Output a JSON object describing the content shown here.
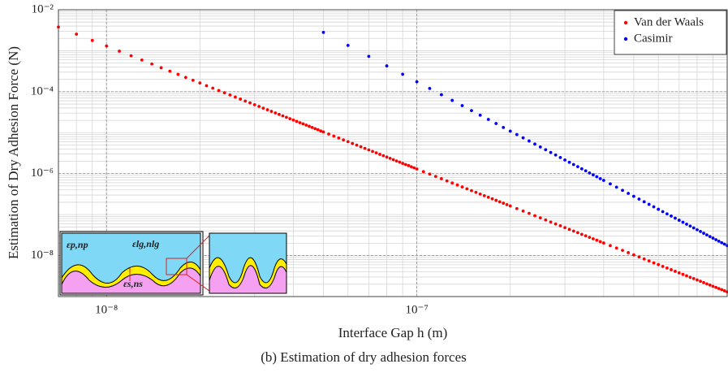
{
  "chart_data": {
    "type": "scatter",
    "xlabel": "Interface Gap h (m)",
    "ylabel": "Estimation of Dry Adhesion Force (N)",
    "caption": "(b) Estimation of dry adhesion forces",
    "log_x": true,
    "log_y": true,
    "grid": true,
    "legend": "northeast",
    "xlim": [
      7e-09,
      1e-06
    ],
    "ylim": [
      1e-09,
      0.01
    ],
    "xticks": [
      {
        "value": 1e-08,
        "label": "10⁻⁸"
      },
      {
        "value": 1e-07,
        "label": "10⁻⁷"
      }
    ],
    "yticks": [
      {
        "value": 1e-08,
        "label": "10⁻⁸"
      },
      {
        "value": 1e-06,
        "label": "10⁻⁶"
      },
      {
        "value": 0.0001,
        "label": "10⁻⁴"
      },
      {
        "value": 0.01,
        "label": "10⁻²"
      }
    ],
    "inset_labels": [
      "εp,np",
      "εlg,nlg",
      "εs,ns"
    ],
    "series": [
      {
        "name": "Van der Waals",
        "color": "#ff0000",
        "x": [
          7e-09,
          8e-09,
          9e-09,
          1e-08,
          1.1e-08,
          1.2e-08,
          1.3e-08,
          1.4e-08,
          1.5e-08,
          1.6e-08,
          1.7e-08,
          1.8e-08,
          1.9e-08,
          2e-08,
          2.1e-08,
          2.2e-08,
          2.3e-08,
          2.4e-08,
          2.5e-08,
          2.6e-08,
          2.7e-08,
          2.8e-08,
          2.9e-08,
          3e-08,
          3.1e-08,
          3.2e-08,
          3.3e-08,
          3.4e-08,
          3.5e-08,
          3.6e-08,
          3.7e-08,
          3.8e-08,
          3.9e-08,
          4e-08,
          4.1e-08,
          4.2e-08,
          4.3e-08,
          4.4e-08,
          4.5e-08,
          4.6e-08,
          4.7e-08,
          4.8e-08,
          4.9e-08,
          5e-08,
          5.2e-08,
          5.4e-08,
          5.6e-08,
          5.8e-08,
          6e-08,
          6.2e-08,
          6.4e-08,
          6.6e-08,
          6.8e-08,
          7e-08,
          7.2e-08,
          7.4e-08,
          7.6e-08,
          7.8e-08,
          8e-08,
          8.2e-08,
          8.4e-08,
          8.6e-08,
          8.8e-08,
          9e-08,
          9.2e-08,
          9.4e-08,
          9.6e-08,
          9.8e-08,
          1e-07,
          1.05e-07,
          1.1e-07,
          1.15e-07,
          1.2e-07,
          1.25e-07,
          1.3e-07,
          1.35e-07,
          1.4e-07,
          1.45e-07,
          1.5e-07,
          1.55e-07,
          1.6e-07,
          1.65e-07,
          1.7e-07,
          1.75e-07,
          1.8e-07,
          1.85e-07,
          1.9e-07,
          1.95e-07,
          2e-07,
          2.1e-07,
          2.2e-07,
          2.3e-07,
          2.4e-07,
          2.5e-07,
          2.6e-07,
          2.7e-07,
          2.8e-07,
          2.9e-07,
          3e-07,
          3.1e-07,
          3.2e-07,
          3.3e-07,
          3.4e-07,
          3.5e-07,
          3.6e-07,
          3.7e-07,
          3.8e-07,
          3.9e-07,
          4e-07,
          4.2e-07,
          4.4e-07,
          4.6e-07,
          4.8e-07,
          5e-07,
          5.2e-07,
          5.4e-07,
          5.6e-07,
          5.8e-07,
          6e-07,
          6.2e-07,
          6.4e-07,
          6.6e-07,
          6.8e-07,
          7e-07,
          7.2e-07,
          7.4e-07,
          7.6e-07,
          7.8e-07,
          8e-07,
          8.2e-07,
          8.4e-07,
          8.6e-07,
          8.8e-07,
          9e-07,
          9.2e-07,
          9.4e-07,
          9.6e-07,
          9.8e-07,
          1e-06
        ],
        "values": [
          0.00379,
          0.00254,
          0.00178,
          0.0013,
          0.000977,
          0.000752,
          0.000592,
          0.000474,
          0.000385,
          0.000317,
          0.000265,
          0.000223,
          0.00019,
          0.000163,
          0.00014,
          0.000122,
          0.000107,
          9.4e-05,
          8.32e-05,
          7.4e-05,
          6.6e-05,
          5.92e-05,
          5.33e-05,
          4.81e-05,
          4.36e-05,
          3.97e-05,
          3.62e-05,
          3.31e-05,
          3.03e-05,
          2.79e-05,
          2.57e-05,
          2.37e-05,
          2.19e-05,
          2.03e-05,
          1.89e-05,
          1.75e-05,
          1.64e-05,
          1.53e-05,
          1.43e-05,
          1.34e-05,
          1.25e-05,
          1.18e-05,
          1.1e-05,
          1.04e-05,
          9.25e-06,
          8.26e-06,
          7.4e-06,
          6.66e-06,
          6.02e-06,
          5.45e-06,
          4.96e-06,
          4.52e-06,
          4.13e-06,
          3.79e-06,
          3.48e-06,
          3.21e-06,
          2.96e-06,
          2.74e-06,
          2.54e-06,
          2.36e-06,
          2.19e-06,
          2.04e-06,
          1.91e-06,
          1.78e-06,
          1.67e-06,
          1.57e-06,
          1.47e-06,
          1.38e-06,
          1.3e-06,
          1.12e-06,
          9.77e-07,
          8.55e-07,
          7.52e-07,
          6.66e-07,
          5.92e-07,
          5.28e-07,
          4.74e-07,
          4.26e-07,
          3.85e-07,
          3.49e-07,
          3.17e-07,
          2.89e-07,
          2.65e-07,
          2.43e-07,
          2.23e-07,
          2.05e-07,
          1.9e-07,
          1.75e-07,
          1.63e-07,
          1.4e-07,
          1.22e-07,
          1.07e-07,
          9.4e-08,
          8.32e-08,
          7.4e-08,
          6.6e-08,
          5.92e-08,
          5.33e-08,
          4.81e-08,
          4.36e-08,
          3.97e-08,
          3.62e-08,
          3.31e-08,
          3.03e-08,
          2.79e-08,
          2.57e-08,
          2.37e-08,
          2.19e-08,
          2.03e-08,
          1.75e-08,
          1.53e-08,
          1.34e-08,
          1.18e-08,
          1.04e-08,
          9.25e-09,
          8.26e-09,
          7.4e-09,
          6.66e-09,
          6.02e-09,
          5.45e-09,
          4.96e-09,
          4.52e-09,
          4.13e-09,
          3.79e-09,
          3.48e-09,
          3.21e-09,
          2.96e-09,
          2.74e-09,
          2.54e-09,
          2.36e-09,
          2.19e-09,
          2.04e-09,
          1.91e-09,
          1.78e-09,
          1.67e-09,
          1.57e-09,
          1.47e-09,
          1.38e-09,
          1.3e-09
        ]
      },
      {
        "name": "Casimir",
        "color": "#0000ff",
        "x": [
          5e-08,
          6e-08,
          7e-08,
          8e-08,
          9e-08,
          1e-07,
          1.1e-07,
          1.2e-07,
          1.3e-07,
          1.4e-07,
          1.5e-07,
          1.6e-07,
          1.7e-07,
          1.8e-07,
          1.9e-07,
          2e-07,
          2.1e-07,
          2.2e-07,
          2.3e-07,
          2.4e-07,
          2.5e-07,
          2.6e-07,
          2.7e-07,
          2.8e-07,
          2.9e-07,
          3e-07,
          3.1e-07,
          3.2e-07,
          3.3e-07,
          3.4e-07,
          3.5e-07,
          3.6e-07,
          3.7e-07,
          3.8e-07,
          3.9e-07,
          4e-07,
          4.2e-07,
          4.4e-07,
          4.6e-07,
          4.8e-07,
          5e-07,
          5.2e-07,
          5.4e-07,
          5.6e-07,
          5.8e-07,
          6e-07,
          6.2e-07,
          6.4e-07,
          6.6e-07,
          6.8e-07,
          7e-07,
          7.2e-07,
          7.4e-07,
          7.6e-07,
          7.8e-07,
          8e-07,
          8.2e-07,
          8.4e-07,
          8.6e-07,
          8.8e-07,
          9e-07,
          9.2e-07,
          9.4e-07,
          9.6e-07,
          9.8e-07,
          1e-06
        ],
        "values": [
          0.0028,
          0.00135,
          0.000729,
          0.000427,
          0.000267,
          0.000175,
          0.00012,
          8.44e-05,
          6.13e-05,
          4.56e-05,
          3.46e-05,
          2.67e-05,
          2.1e-05,
          1.67e-05,
          1.34e-05,
          1.09e-05,
          9e-06,
          7.47e-06,
          6.25e-06,
          5.27e-06,
          4.48e-06,
          3.83e-06,
          3.29e-06,
          2.85e-06,
          2.47e-06,
          2.16e-06,
          1.89e-06,
          1.67e-06,
          1.48e-06,
          1.31e-06,
          1.17e-06,
          1.04e-06,
          9.34e-07,
          8.39e-07,
          7.56e-07,
          6.84e-07,
          5.62e-07,
          4.67e-07,
          3.91e-07,
          3.3e-07,
          2.8e-07,
          2.39e-07,
          2.06e-07,
          1.78e-07,
          1.55e-07,
          1.35e-07,
          1.18e-07,
          1.04e-07,
          9.22e-08,
          8.18e-08,
          7.29e-08,
          6.51e-08,
          5.84e-08,
          5.25e-08,
          4.73e-08,
          4.27e-08,
          3.87e-08,
          3.51e-08,
          3.2e-08,
          2.92e-08,
          2.67e-08,
          2.44e-08,
          2.24e-08,
          2.06e-08,
          1.9e-08,
          1.75e-08
        ]
      }
    ]
  }
}
